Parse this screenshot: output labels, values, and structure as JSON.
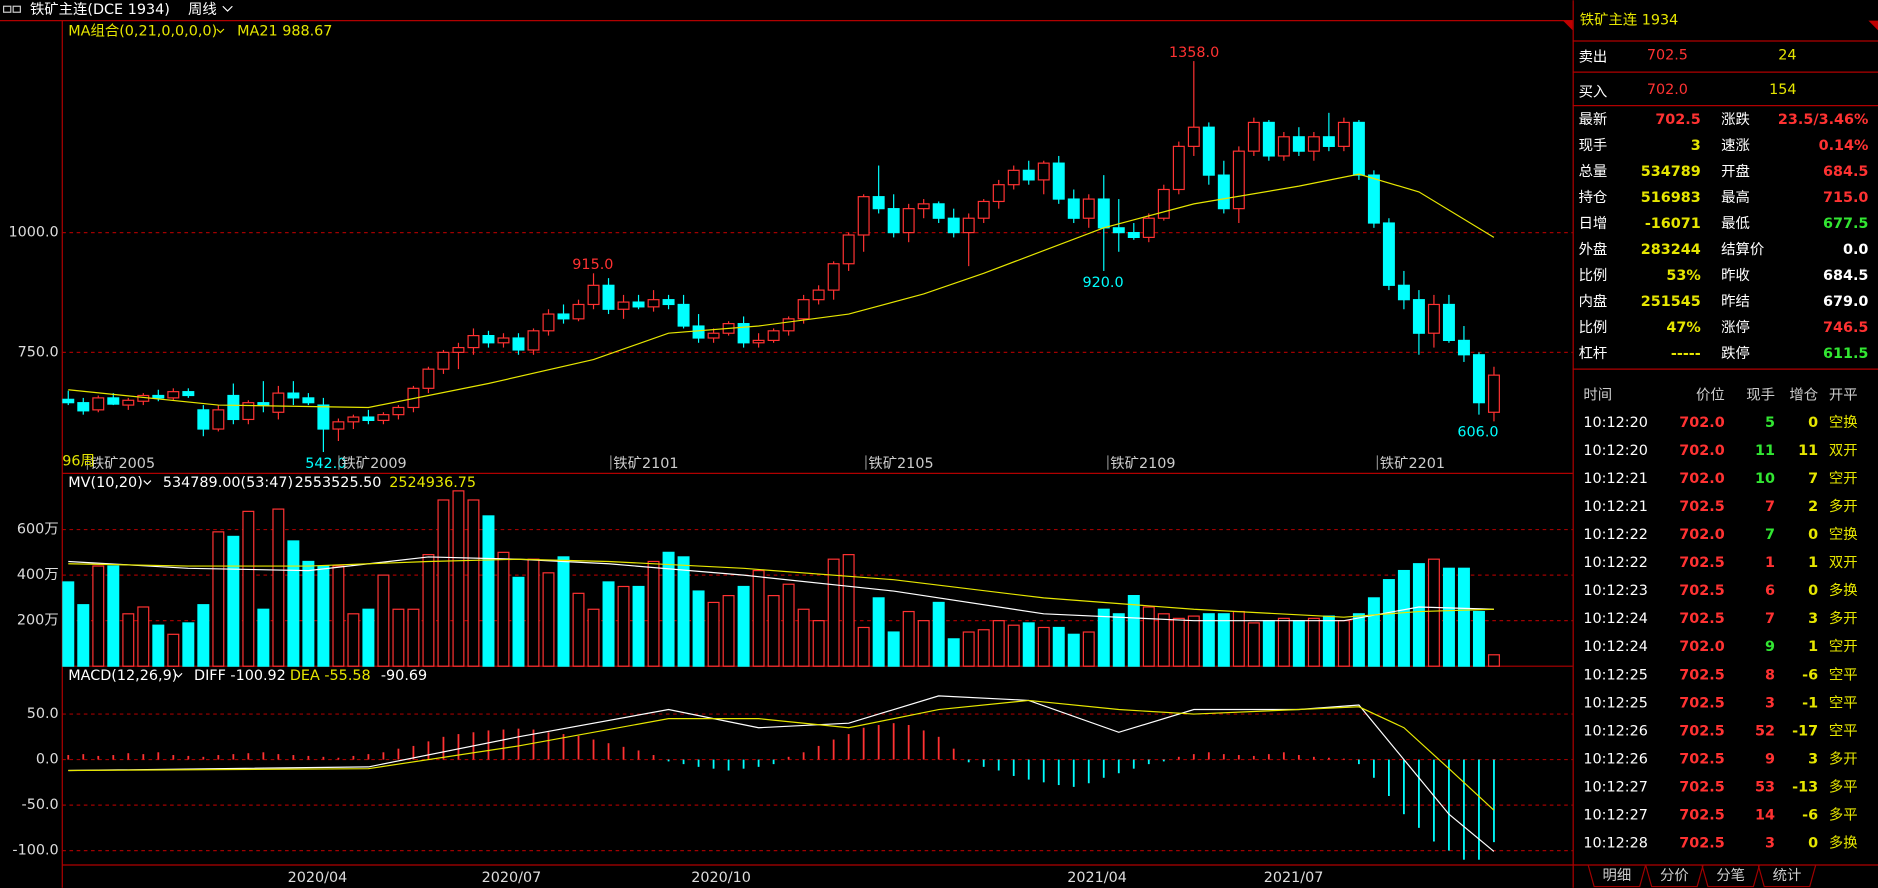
{
  "header": {
    "title": "铁矿主连(DCE 1934)",
    "period": "周线"
  },
  "chart_data": [
    {
      "type": "candlestick",
      "title": "MA组合(0,21,0,0,0,0)",
      "ma_legend": "MA21 988.67",
      "period_label": "96周",
      "up_color": "#ff3232",
      "down_color": "#00ffff",
      "candles": [
        [
          652,
          670,
          640,
          645
        ],
        [
          645,
          655,
          620,
          628
        ],
        [
          630,
          660,
          625,
          655
        ],
        [
          655,
          665,
          640,
          642
        ],
        [
          640,
          655,
          630,
          650
        ],
        [
          648,
          665,
          640,
          660
        ],
        [
          660,
          672,
          648,
          655
        ],
        [
          655,
          675,
          650,
          668
        ],
        [
          668,
          675,
          655,
          660
        ],
        [
          630,
          640,
          575,
          590
        ],
        [
          590,
          640,
          585,
          630
        ],
        [
          660,
          685,
          600,
          610
        ],
        [
          610,
          650,
          600,
          645
        ],
        [
          645,
          690,
          625,
          640
        ],
        [
          625,
          680,
          610,
          665
        ],
        [
          665,
          690,
          640,
          655
        ],
        [
          655,
          665,
          640,
          645
        ],
        [
          640,
          655,
          542,
          590
        ],
        [
          590,
          612,
          565,
          605
        ],
        [
          605,
          620,
          590,
          615
        ],
        [
          615,
          630,
          600,
          608
        ],
        [
          608,
          625,
          600,
          620
        ],
        [
          620,
          640,
          610,
          635
        ],
        [
          635,
          680,
          625,
          675
        ],
        [
          675,
          720,
          665,
          715
        ],
        [
          715,
          755,
          705,
          750
        ],
        [
          750,
          770,
          715,
          760
        ],
        [
          760,
          800,
          745,
          785
        ],
        [
          785,
          795,
          760,
          770
        ],
        [
          770,
          790,
          760,
          780
        ],
        [
          780,
          790,
          745,
          755
        ],
        [
          755,
          800,
          745,
          795
        ],
        [
          795,
          840,
          785,
          830
        ],
        [
          830,
          850,
          810,
          820
        ],
        [
          820,
          860,
          815,
          850
        ],
        [
          850,
          915,
          840,
          890
        ],
        [
          890,
          905,
          830,
          840
        ],
        [
          840,
          870,
          820,
          855
        ],
        [
          855,
          870,
          840,
          845
        ],
        [
          845,
          880,
          835,
          860
        ],
        [
          860,
          870,
          840,
          850
        ],
        [
          850,
          870,
          800,
          805
        ],
        [
          805,
          830,
          770,
          780
        ],
        [
          780,
          800,
          770,
          790
        ],
        [
          790,
          815,
          785,
          810
        ],
        [
          810,
          825,
          760,
          770
        ],
        [
          770,
          790,
          760,
          775
        ],
        [
          775,
          800,
          770,
          795
        ],
        [
          795,
          825,
          785,
          820
        ],
        [
          820,
          870,
          810,
          860
        ],
        [
          860,
          890,
          850,
          880
        ],
        [
          880,
          940,
          860,
          935
        ],
        [
          935,
          1000,
          920,
          995
        ],
        [
          995,
          1080,
          960,
          1075
        ],
        [
          1075,
          1140,
          1040,
          1050
        ],
        [
          1050,
          1080,
          990,
          1000
        ],
        [
          1000,
          1060,
          980,
          1050
        ],
        [
          1050,
          1070,
          1030,
          1060
        ],
        [
          1060,
          1065,
          1020,
          1030
        ],
        [
          1030,
          1050,
          990,
          1000
        ],
        [
          1000,
          1040,
          930,
          1030
        ],
        [
          1030,
          1070,
          1020,
          1065
        ],
        [
          1065,
          1110,
          1050,
          1100
        ],
        [
          1100,
          1140,
          1090,
          1130
        ],
        [
          1130,
          1150,
          1100,
          1110
        ],
        [
          1110,
          1150,
          1080,
          1145
        ],
        [
          1145,
          1160,
          1060,
          1070
        ],
        [
          1070,
          1090,
          1020,
          1030
        ],
        [
          1030,
          1080,
          1010,
          1070
        ],
        [
          1070,
          1120,
          920,
          1010
        ],
        [
          1010,
          1070,
          960,
          1000
        ],
        [
          1000,
          1020,
          985,
          990
        ],
        [
          990,
          1040,
          980,
          1030
        ],
        [
          1030,
          1100,
          1025,
          1090
        ],
        [
          1090,
          1190,
          1080,
          1180
        ],
        [
          1180,
          1358,
          1160,
          1220
        ],
        [
          1220,
          1230,
          1100,
          1120
        ],
        [
          1120,
          1150,
          1040,
          1050
        ],
        [
          1050,
          1180,
          1020,
          1170
        ],
        [
          1170,
          1240,
          1160,
          1230
        ],
        [
          1230,
          1235,
          1150,
          1160
        ],
        [
          1160,
          1210,
          1150,
          1200
        ],
        [
          1200,
          1220,
          1160,
          1170
        ],
        [
          1170,
          1210,
          1150,
          1200
        ],
        [
          1200,
          1250,
          1170,
          1180
        ],
        [
          1180,
          1240,
          1170,
          1230
        ],
        [
          1230,
          1235,
          1110,
          1120
        ],
        [
          1120,
          1130,
          1010,
          1020
        ],
        [
          1020,
          1030,
          880,
          890
        ],
        [
          890,
          920,
          840,
          860
        ],
        [
          860,
          880,
          745,
          790
        ],
        [
          790,
          870,
          760,
          850
        ],
        [
          850,
          870,
          770,
          775
        ],
        [
          775,
          805,
          730,
          745
        ],
        [
          745,
          750,
          620,
          645
        ],
        [
          625,
          720,
          606,
          702.5
        ]
      ],
      "series": [
        {
          "color": "#e6e600",
          "x": [
            0,
            10,
            20,
            28,
            35,
            40,
            46,
            52,
            57,
            61,
            69,
            75,
            82,
            86,
            90,
            95
          ],
          "values": [
            672,
            640,
            635,
            685,
            735,
            790,
            805,
            830,
            872,
            915,
            1010,
            1060,
            1097,
            1122,
            1085,
            990
          ]
        }
      ],
      "ylim": [
        497.5,
        1440
      ],
      "yticks": [
        {
          "value": 750,
          "label": "750.0"
        },
        {
          "value": 1000,
          "label": "1000.0"
        }
      ],
      "annotations": [
        "1358.0",
        "915.0",
        "920.0",
        "542.0",
        "606.0"
      ],
      "contract_labels": [
        "铁矿2005",
        "铁矿2009",
        "铁矿2101",
        "铁矿2105",
        "铁矿2109",
        "铁矿2201"
      ]
    },
    {
      "type": "bar",
      "title": "MV(10,20)",
      "legend": [
        "534789.00(53:47)",
        "2553525.50",
        "2524936.75"
      ],
      "values": [
        370,
        270,
        440,
        440,
        230,
        260,
        180,
        140,
        190,
        270,
        590,
        570,
        680,
        250,
        690,
        550,
        460,
        440,
        440,
        230,
        250,
        400,
        250,
        250,
        490,
        730,
        770,
        730,
        660,
        500,
        390,
        470,
        410,
        480,
        320,
        250,
        370,
        350,
        350,
        460,
        500,
        480,
        330,
        280,
        310,
        350,
        420,
        310,
        360,
        250,
        200,
        470,
        490,
        170,
        300,
        150,
        240,
        200,
        280,
        120,
        150,
        160,
        200,
        180,
        190,
        170,
        170,
        140,
        150,
        250,
        230,
        310,
        260,
        230,
        210,
        220,
        230,
        230,
        240,
        190,
        200,
        210,
        200,
        210,
        220,
        200,
        230,
        300,
        380,
        420,
        450,
        470,
        430,
        430,
        240,
        50
      ],
      "series": [
        {
          "color": "#ffffff",
          "x": [
            0,
            8,
            16,
            24,
            30,
            36,
            45,
            55,
            65,
            75,
            85,
            90,
            95
          ],
          "values": [
            460,
            430,
            420,
            480,
            470,
            450,
            400,
            330,
            230,
            200,
            200,
            260,
            250
          ]
        },
        {
          "color": "#e6e600",
          "x": [
            0,
            8,
            16,
            24,
            30,
            36,
            45,
            55,
            65,
            75,
            85,
            90,
            95
          ],
          "values": [
            450,
            440,
            440,
            460,
            470,
            460,
            430,
            380,
            300,
            250,
            215,
            240,
            250
          ]
        }
      ],
      "ylim": [
        0,
        847
      ],
      "yticks": [
        {
          "value": 200,
          "label": "200万"
        },
        {
          "value": 400,
          "label": "400万"
        },
        {
          "value": 600,
          "label": "600万"
        }
      ]
    },
    {
      "type": "macd",
      "title": "MACD(12,26,9)",
      "legend": [
        "DIFF -100.92",
        "DEA -55.58",
        "-90.69"
      ],
      "values": [
        5,
        6,
        4,
        5,
        7,
        6,
        8,
        5,
        4,
        3,
        5,
        6,
        7,
        8,
        6,
        5,
        4,
        3,
        2,
        4,
        6,
        8,
        12,
        15,
        20,
        25,
        28,
        30,
        32,
        33,
        34,
        33,
        30,
        28,
        26,
        22,
        18,
        14,
        10,
        5,
        -2,
        -5,
        -8,
        -10,
        -12,
        -10,
        -8,
        -5,
        3,
        8,
        15,
        22,
        28,
        35,
        38,
        40,
        38,
        32,
        25,
        12,
        -3,
        -8,
        -12,
        -18,
        -22,
        -25,
        -28,
        -30,
        -26,
        -20,
        -15,
        -10,
        -5,
        -2,
        3,
        6,
        8,
        6,
        5,
        4,
        6,
        8,
        5,
        3,
        2,
        1,
        -5,
        -20,
        -40,
        -60,
        -75,
        -90,
        -100,
        -110,
        -110,
        -90.69
      ],
      "series": [
        {
          "color": "#ffffff",
          "x": [
            0,
            20,
            30,
            40,
            46,
            52,
            58,
            64,
            70,
            75,
            82,
            86,
            89,
            92,
            95
          ],
          "values": [
            -12,
            -8,
            25,
            55,
            35,
            40,
            70,
            65,
            30,
            55,
            55,
            60,
            0,
            -60,
            -100.92
          ]
        },
        {
          "color": "#e6e600",
          "x": [
            0,
            20,
            30,
            40,
            46,
            52,
            58,
            64,
            70,
            75,
            82,
            86,
            89,
            92,
            95
          ],
          "values": [
            -12,
            -10,
            15,
            45,
            45,
            35,
            55,
            65,
            55,
            50,
            55,
            58,
            35,
            -10,
            -55.58
          ]
        }
      ],
      "ylim": [
        -115.8,
        102.6
      ],
      "yticks": [
        {
          "value": -100,
          "label": "-100.0"
        },
        {
          "value": -50,
          "label": "-50.0"
        },
        {
          "value": 0,
          "label": "0.0"
        },
        {
          "value": 50,
          "label": "50.0"
        }
      ],
      "date_labels": [
        "2020/04",
        "2020/07",
        "2020/10",
        "2021/04",
        "2021/07"
      ]
    }
  ],
  "quote_panel": {
    "title": "铁矿主连  1934",
    "ask": [
      "卖出",
      "702.5",
      "24"
    ],
    "bid": [
      "买入",
      "702.0",
      "154"
    ],
    "stats": [
      [
        "最新",
        "702.5",
        "涨跌",
        "23.5/3.46%"
      ],
      [
        "现手",
        "3",
        "速涨",
        "0.14%"
      ],
      [
        "总量",
        "534789",
        "开盘",
        "684.5"
      ],
      [
        "持仓",
        "516983",
        "最高",
        "715.0"
      ],
      [
        "日增",
        "-16071",
        "最低",
        "677.5"
      ],
      [
        "外盘",
        "283244",
        "结算价",
        "0.0"
      ],
      [
        "比例",
        "53%",
        "昨收",
        "684.5"
      ],
      [
        "内盘",
        "251545",
        "昨结",
        "679.0"
      ],
      [
        "比例",
        "47%",
        "涨停",
        "746.5"
      ],
      [
        "杠杆",
        "-----",
        "跌停",
        "611.5"
      ]
    ],
    "tick_header": [
      "时间",
      "价位",
      "现手",
      "增仓",
      "开平"
    ],
    "ticks": [
      [
        "10:12:20",
        "702.0",
        "5",
        "0",
        "空换"
      ],
      [
        "10:12:20",
        "702.0",
        "11",
        "11",
        "双开"
      ],
      [
        "10:12:21",
        "702.0",
        "10",
        "7",
        "空开"
      ],
      [
        "10:12:21",
        "702.5",
        "7",
        "2",
        "多开"
      ],
      [
        "10:12:22",
        "702.0",
        "7",
        "0",
        "空换"
      ],
      [
        "10:12:22",
        "702.5",
        "1",
        "1",
        "双开"
      ],
      [
        "10:12:23",
        "702.5",
        "6",
        "0",
        "多换"
      ],
      [
        "10:12:24",
        "702.5",
        "7",
        "3",
        "多开"
      ],
      [
        "10:12:24",
        "702.0",
        "9",
        "1",
        "空开"
      ],
      [
        "10:12:25",
        "702.5",
        "8",
        "-6",
        "空平"
      ],
      [
        "10:12:25",
        "702.5",
        "3",
        "-1",
        "空平"
      ],
      [
        "10:12:26",
        "702.5",
        "52",
        "-17",
        "空平"
      ],
      [
        "10:12:26",
        "702.5",
        "9",
        "3",
        "多开"
      ],
      [
        "10:12:27",
        "702.5",
        "53",
        "-13",
        "多平"
      ],
      [
        "10:12:27",
        "702.5",
        "14",
        "-6",
        "多平"
      ],
      [
        "10:12:28",
        "702.5",
        "3",
        "0",
        "多换"
      ]
    ],
    "tabs": [
      "明细",
      "分价",
      "分笔",
      "统计"
    ]
  }
}
